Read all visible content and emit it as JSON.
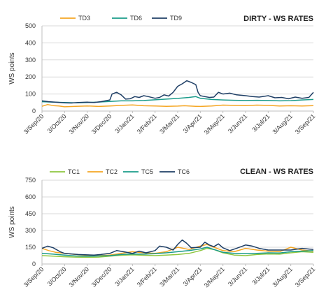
{
  "chart_data": [
    {
      "type": "line",
      "title": "DIRTY - WS RATES",
      "ylabel": "WS points",
      "ylim": [
        0,
        500
      ],
      "yticks": [
        0,
        100,
        200,
        300,
        400,
        500
      ],
      "x_labels": [
        "3/Sep/20",
        "3/Oct/20",
        "3/Nov/20",
        "3/Dec/20",
        "3/Jan/21",
        "3/Feb/21",
        "3/Mar/21",
        "3/Apr/21",
        "3/May/21",
        "3/Jun/21",
        "3/Jul/21",
        "3/Aug/21",
        "3/Sep/21"
      ],
      "grid": "horizontal",
      "legend": "top",
      "series": [
        {
          "name": "TD3",
          "color": "#f5a623",
          "x": [
            0,
            0.25,
            0.5,
            0.75,
            1,
            1.5,
            2,
            2.5,
            3,
            3.5,
            4,
            4.5,
            5,
            5.5,
            6,
            6.3,
            6.5,
            6.8,
            7,
            7.5,
            8,
            8.5,
            9,
            9.5,
            10,
            10.5,
            11,
            11.5,
            12
          ],
          "y": [
            28,
            38,
            32,
            30,
            25,
            28,
            30,
            27,
            30,
            33,
            36,
            31,
            30,
            28,
            29,
            31,
            30,
            28,
            27,
            30,
            35,
            33,
            32,
            35,
            33,
            30,
            31,
            30,
            32
          ]
        },
        {
          "name": "TD6",
          "color": "#1a9b8a",
          "x": [
            0,
            0.5,
            1,
            1.5,
            2,
            2.5,
            3,
            3.5,
            4,
            4.5,
            5,
            5.5,
            6,
            6.5,
            6.8,
            7,
            7.5,
            8,
            8.5,
            9,
            9.5,
            10,
            10.5,
            11,
            11.5,
            12
          ],
          "y": [
            55,
            52,
            50,
            48,
            50,
            53,
            56,
            60,
            60,
            62,
            66,
            70,
            74,
            80,
            85,
            75,
            68,
            65,
            63,
            62,
            63,
            62,
            60,
            61,
            65,
            68
          ]
        },
        {
          "name": "TD9",
          "color": "#1f3f66",
          "x": [
            0,
            0.3,
            0.6,
            1,
            1.3,
            1.6,
            2,
            2.3,
            2.6,
            3,
            3.1,
            3.3,
            3.5,
            3.7,
            3.9,
            4.1,
            4.3,
            4.5,
            4.7,
            5,
            5.2,
            5.4,
            5.6,
            5.8,
            6,
            6.2,
            6.4,
            6.6,
            6.8,
            6.9,
            7,
            7.2,
            7.4,
            7.6,
            7.8,
            8,
            8.3,
            8.6,
            9,
            9.3,
            9.6,
            10,
            10.3,
            10.6,
            10.9,
            11.2,
            11.5,
            11.8,
            12
          ],
          "y": [
            60,
            55,
            52,
            48,
            47,
            50,
            52,
            50,
            55,
            65,
            100,
            110,
            95,
            70,
            72,
            85,
            80,
            90,
            85,
            75,
            80,
            95,
            88,
            110,
            145,
            160,
            178,
            168,
            155,
            110,
            90,
            85,
            80,
            82,
            110,
            100,
            105,
            95,
            90,
            85,
            82,
            90,
            78,
            80,
            72,
            82,
            75,
            80,
            110
          ]
        }
      ]
    },
    {
      "type": "line",
      "title": "CLEAN - WS RATES",
      "ylabel": "WS points",
      "ylim": [
        0,
        750
      ],
      "yticks": [
        0,
        150,
        300,
        450,
        600,
        750
      ],
      "x_labels": [
        "3/Sep/20",
        "3/Oct/20",
        "3/Nov/20",
        "3/Dec/20",
        "3/Jan/21",
        "3/Feb/21",
        "3/Mar/21",
        "3/Apr/21",
        "3/May/21",
        "3/Jun/21",
        "3/Jul/21",
        "3/Aug/21",
        "3/Sep/21"
      ],
      "grid": "horizontal",
      "legend": "top",
      "series": [
        {
          "name": "TC1",
          "color": "#8ec63f",
          "x": [
            0,
            0.5,
            1,
            1.5,
            2,
            2.5,
            3,
            3.5,
            4,
            4.5,
            5,
            5.5,
            6,
            6.5,
            7,
            7.3,
            7.6,
            8,
            8.5,
            9,
            9.5,
            10,
            10.5,
            11,
            11.5,
            12
          ],
          "y": [
            75,
            70,
            65,
            62,
            60,
            62,
            70,
            78,
            82,
            78,
            75,
            80,
            85,
            95,
            120,
            140,
            130,
            100,
            80,
            75,
            85,
            90,
            88,
            100,
            110,
            105
          ]
        },
        {
          "name": "TC2",
          "color": "#f5a623",
          "x": [
            0,
            0.3,
            0.6,
            1,
            1.5,
            2,
            2.5,
            3,
            3.5,
            4,
            4.5,
            5,
            5.5,
            6,
            6.5,
            7,
            7.3,
            7.6,
            8,
            8.5,
            9,
            9.5,
            10,
            10.5,
            11,
            11.5,
            12
          ],
          "y": [
            140,
            120,
            105,
            95,
            85,
            78,
            75,
            80,
            95,
            110,
            100,
            95,
            110,
            150,
            130,
            160,
            175,
            150,
            120,
            110,
            140,
            125,
            115,
            110,
            150,
            125,
            115
          ]
        },
        {
          "name": "TC5",
          "color": "#1a9b8a",
          "x": [
            0,
            0.5,
            1,
            1.5,
            2,
            2.5,
            3,
            3.5,
            4,
            4.5,
            5,
            5.5,
            6,
            6.5,
            7,
            7.3,
            7.6,
            8,
            8.5,
            9,
            9.5,
            10,
            10.5,
            11,
            11.5,
            12
          ],
          "y": [
            95,
            88,
            80,
            72,
            70,
            72,
            75,
            85,
            90,
            88,
            92,
            100,
            110,
            120,
            135,
            150,
            130,
            105,
            95,
            92,
            95,
            100,
            98,
            110,
            115,
            120
          ]
        },
        {
          "name": "TC6",
          "color": "#1f3f66",
          "x": [
            0,
            0.25,
            0.5,
            0.8,
            1,
            1.3,
            1.6,
            2,
            2.3,
            2.6,
            3,
            3.3,
            3.6,
            4,
            4.3,
            4.6,
            5,
            5.2,
            5.5,
            5.8,
            6,
            6.2,
            6.4,
            6.6,
            7,
            7.2,
            7.4,
            7.6,
            7.8,
            8,
            8.3,
            8.6,
            9,
            9.3,
            9.6,
            10,
            10.5,
            11,
            11.5,
            12
          ],
          "y": [
            140,
            160,
            145,
            110,
            95,
            90,
            85,
            82,
            80,
            85,
            95,
            120,
            110,
            95,
            115,
            100,
            120,
            160,
            150,
            125,
            175,
            215,
            185,
            145,
            150,
            195,
            170,
            155,
            180,
            145,
            120,
            140,
            170,
            160,
            140,
            125,
            125,
            125,
            140,
            130
          ]
        }
      ]
    }
  ]
}
